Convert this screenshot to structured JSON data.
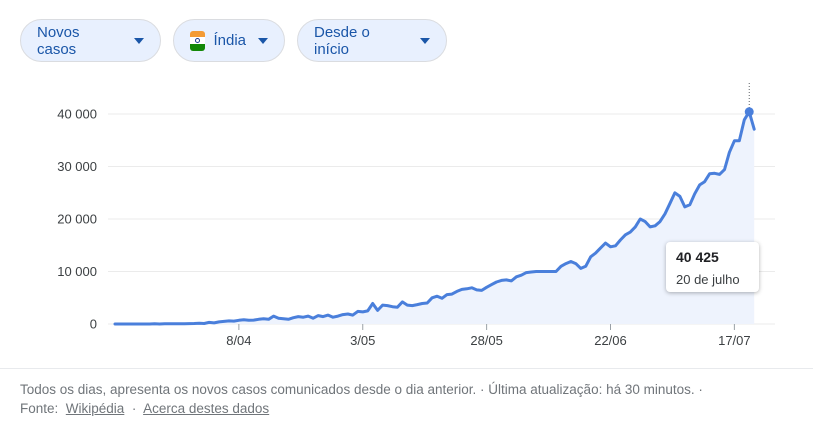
{
  "filters": {
    "metric": "Novos casos",
    "region": "Índia",
    "range": "Desde o início"
  },
  "icons": {
    "region_flag": "india-flag-icon",
    "dropdown": "caret-down-icon"
  },
  "colors": {
    "line": "#4a7fdb",
    "area": "#eef3fd",
    "chip_bg": "#e8f0fe",
    "chip_text": "#1a56a8"
  },
  "tooltip": {
    "value": "40 425",
    "date": "20 de julho"
  },
  "footer": {
    "text": "Todos os dias, apresenta os novos casos comunicados desde o dia anterior. · Última atualização: há 30 minutos.  ·",
    "source_label": "Fonte:",
    "source_link": "Wikipédia",
    "separator": "·",
    "about_link": "Acerca destes dados"
  },
  "chart_data": {
    "type": "area",
    "title": "",
    "xlabel": "",
    "ylabel": "",
    "ylim": [
      0,
      40000
    ],
    "yticks": [
      "0",
      "10 000",
      "20 000",
      "30 000",
      "40 000"
    ],
    "ytick_values": [
      0,
      10000,
      20000,
      30000,
      40000
    ],
    "xticks": [
      "8/04",
      "3/05",
      "28/05",
      "22/06",
      "17/07"
    ],
    "xtick_days": [
      25,
      50,
      75,
      100,
      125
    ],
    "grid": true,
    "highlight": {
      "day": 128,
      "value": 40425
    },
    "series": [
      {
        "values": [
          [
            0,
            0
          ],
          [
            1,
            0
          ],
          [
            2,
            0
          ],
          [
            3,
            0
          ],
          [
            4,
            0
          ],
          [
            5,
            0
          ],
          [
            6,
            0
          ],
          [
            7,
            0
          ],
          [
            8,
            50
          ],
          [
            9,
            0
          ],
          [
            10,
            50
          ],
          [
            11,
            50
          ],
          [
            12,
            50
          ],
          [
            13,
            50
          ],
          [
            14,
            50
          ],
          [
            15,
            70
          ],
          [
            16,
            100
          ],
          [
            17,
            150
          ],
          [
            18,
            100
          ],
          [
            19,
            300
          ],
          [
            20,
            200
          ],
          [
            21,
            400
          ],
          [
            22,
            500
          ],
          [
            23,
            600
          ],
          [
            24,
            550
          ],
          [
            25,
            700
          ],
          [
            26,
            800
          ],
          [
            27,
            700
          ],
          [
            28,
            750
          ],
          [
            29,
            900
          ],
          [
            30,
            1000
          ],
          [
            31,
            900
          ],
          [
            32,
            1500
          ],
          [
            33,
            1100
          ],
          [
            34,
            1000
          ],
          [
            35,
            900
          ],
          [
            36,
            1200
          ],
          [
            37,
            1400
          ],
          [
            38,
            1300
          ],
          [
            39,
            1500
          ],
          [
            40,
            1100
          ],
          [
            41,
            1600
          ],
          [
            42,
            1400
          ],
          [
            43,
            1700
          ],
          [
            44,
            1300
          ],
          [
            45,
            1500
          ],
          [
            46,
            1800
          ],
          [
            47,
            1900
          ],
          [
            48,
            1700
          ],
          [
            49,
            2400
          ],
          [
            50,
            2300
          ],
          [
            51,
            2500
          ],
          [
            52,
            3900
          ],
          [
            53,
            2600
          ],
          [
            54,
            3600
          ],
          [
            55,
            3500
          ],
          [
            56,
            3300
          ],
          [
            57,
            3200
          ],
          [
            58,
            4200
          ],
          [
            59,
            3600
          ],
          [
            60,
            3500
          ],
          [
            61,
            3700
          ],
          [
            62,
            3900
          ],
          [
            63,
            4000
          ],
          [
            64,
            5000
          ],
          [
            65,
            5300
          ],
          [
            66,
            4900
          ],
          [
            67,
            5600
          ],
          [
            68,
            5700
          ],
          [
            69,
            6200
          ],
          [
            70,
            6600
          ],
          [
            71,
            6700
          ],
          [
            72,
            6900
          ],
          [
            73,
            6500
          ],
          [
            74,
            6400
          ],
          [
            75,
            7000
          ],
          [
            76,
            7500
          ],
          [
            77,
            8000
          ],
          [
            78,
            8300
          ],
          [
            79,
            8400
          ],
          [
            80,
            8200
          ],
          [
            81,
            9000
          ],
          [
            82,
            9300
          ],
          [
            83,
            9800
          ],
          [
            84,
            9900
          ],
          [
            85,
            10000
          ],
          [
            86,
            10000
          ],
          [
            87,
            10000
          ],
          [
            88,
            10000
          ],
          [
            89,
            10000
          ],
          [
            90,
            11000
          ],
          [
            91,
            11500
          ],
          [
            92,
            11900
          ],
          [
            93,
            11500
          ],
          [
            94,
            10600
          ],
          [
            95,
            11000
          ],
          [
            96,
            12800
          ],
          [
            97,
            13500
          ],
          [
            98,
            14500
          ],
          [
            99,
            15400
          ],
          [
            100,
            14700
          ],
          [
            101,
            14900
          ],
          [
            102,
            16000
          ],
          [
            103,
            17000
          ],
          [
            104,
            17500
          ],
          [
            105,
            18500
          ],
          [
            106,
            20000
          ],
          [
            107,
            19500
          ],
          [
            108,
            18500
          ],
          [
            109,
            18700
          ],
          [
            110,
            19500
          ],
          [
            111,
            21000
          ],
          [
            112,
            23000
          ],
          [
            113,
            25000
          ],
          [
            114,
            24300
          ],
          [
            115,
            22300
          ],
          [
            116,
            22700
          ],
          [
            117,
            24800
          ],
          [
            118,
            26500
          ],
          [
            119,
            27100
          ],
          [
            120,
            28600
          ],
          [
            121,
            28700
          ],
          [
            122,
            28500
          ],
          [
            123,
            29400
          ],
          [
            124,
            32700
          ],
          [
            125,
            34900
          ],
          [
            126,
            34900
          ],
          [
            127,
            38900
          ],
          [
            128,
            40425
          ],
          [
            129,
            37100
          ]
        ]
      }
    ]
  }
}
